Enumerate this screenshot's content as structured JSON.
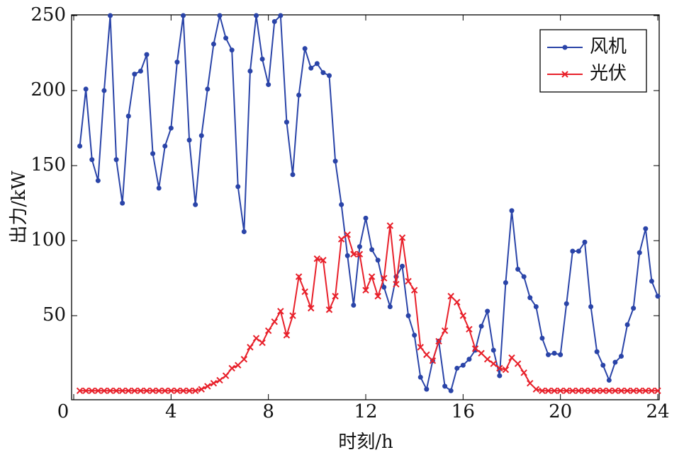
{
  "chart_data": {
    "type": "line",
    "xlabel": "时刻/h",
    "ylabel": "出力/kW",
    "x": [
      0.25,
      0.5,
      0.75,
      1,
      1.25,
      1.5,
      1.75,
      2,
      2.25,
      2.5,
      2.75,
      3,
      3.25,
      3.5,
      3.75,
      4,
      4.25,
      4.5,
      4.75,
      5,
      5.25,
      5.5,
      5.75,
      6,
      6.25,
      6.5,
      6.75,
      7,
      7.25,
      7.5,
      7.75,
      8,
      8.25,
      8.5,
      8.75,
      9,
      9.25,
      9.5,
      9.75,
      10,
      10.25,
      10.5,
      10.75,
      11,
      11.25,
      11.5,
      11.75,
      12,
      12.25,
      12.5,
      12.75,
      13,
      13.25,
      13.5,
      13.75,
      14,
      14.25,
      14.5,
      14.75,
      15,
      15.25,
      15.5,
      15.75,
      16,
      16.25,
      16.5,
      16.75,
      17,
      17.25,
      17.5,
      17.75,
      18,
      18.25,
      18.5,
      18.75,
      19,
      19.25,
      19.5,
      19.75,
      20,
      20.25,
      20.5,
      20.75,
      21,
      21.25,
      21.5,
      21.75,
      22,
      22.25,
      22.5,
      22.75,
      23,
      23.25,
      23.5,
      23.75,
      24
    ],
    "series": [
      {
        "name": "风机",
        "color": "#2a44a8",
        "marker": "dot",
        "values": [
          163,
          201,
          154,
          140,
          200,
          250,
          154,
          125,
          183,
          211,
          213,
          224,
          158,
          135,
          163,
          175,
          219,
          250,
          167,
          124,
          170,
          201,
          231,
          250,
          235,
          227,
          136,
          106,
          213,
          250,
          221,
          204,
          246,
          250,
          179,
          144,
          197,
          228,
          215,
          218,
          212,
          210,
          153,
          124,
          90,
          57,
          96,
          115,
          94,
          87,
          69,
          56,
          76,
          83,
          50,
          37,
          9,
          1,
          20,
          33,
          3,
          0,
          15,
          17,
          21,
          27,
          43,
          53,
          27,
          10,
          72,
          120,
          81,
          76,
          62,
          56,
          35,
          24,
          25,
          24,
          58,
          93,
          93,
          99,
          56,
          26,
          17,
          7,
          19,
          23,
          44,
          55,
          92,
          108,
          73,
          63
        ]
      },
      {
        "name": "光伏",
        "color": "#e8202a",
        "marker": "x",
        "values": [
          0,
          0,
          0,
          0,
          0,
          0,
          0,
          0,
          0,
          0,
          0,
          0,
          0,
          0,
          0,
          0,
          0,
          0,
          0,
          0,
          1,
          3,
          5,
          7,
          10,
          15,
          17,
          21,
          29,
          35,
          32,
          40,
          46,
          53,
          37,
          50,
          76,
          66,
          55,
          88,
          87,
          54,
          63,
          101,
          104,
          91,
          91,
          67,
          76,
          63,
          75,
          110,
          71,
          102,
          73,
          67,
          29,
          24,
          20,
          33,
          40,
          63,
          59,
          50,
          41,
          28,
          25,
          21,
          18,
          15,
          14,
          22,
          18,
          12,
          5,
          1,
          0,
          0,
          0,
          0,
          0,
          0,
          0,
          0,
          0,
          0,
          0,
          0,
          0,
          0,
          0,
          0,
          0,
          0,
          0,
          0
        ]
      }
    ],
    "xlim": [
      0,
      24
    ],
    "xticks": [
      0,
      4,
      8,
      12,
      16,
      20,
      24
    ],
    "ylim": [
      -6,
      250
    ],
    "yticks": [
      50,
      100,
      150,
      200,
      250
    ],
    "legend": "upper right"
  }
}
